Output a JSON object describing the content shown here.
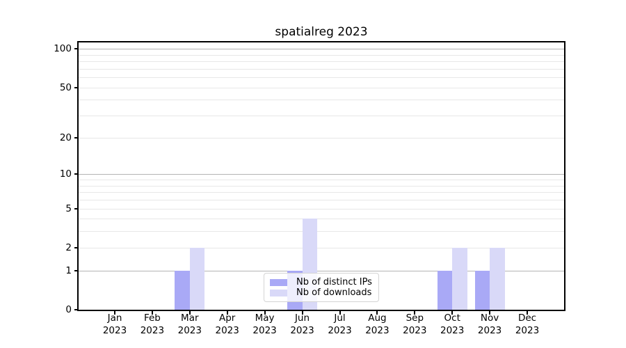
{
  "title": "spatialreg 2023",
  "colors": {
    "distinct_ips": "#a9a9f6",
    "downloads": "#d9d9f8",
    "grid_minor": "#e7e7e7",
    "grid_major": "#b3b3b3",
    "axis": "#000000",
    "legend_border": "#d4d4d4"
  },
  "chart_data": {
    "type": "bar",
    "title": "spatialreg 2023",
    "categories": [
      "Jan",
      "Feb",
      "Mar",
      "Apr",
      "May",
      "Jun",
      "Jul",
      "Aug",
      "Sep",
      "Oct",
      "Nov",
      "Dec"
    ],
    "x_year": "2023",
    "series": [
      {
        "name": "Nb of distinct IPs",
        "color_key": "distinct_ips",
        "values": [
          0,
          0,
          1,
          0,
          0,
          1,
          0,
          0,
          0,
          1,
          1,
          0
        ]
      },
      {
        "name": "Nb of downloads",
        "color_key": "downloads",
        "values": [
          0,
          0,
          2,
          0,
          0,
          4,
          0,
          0,
          0,
          2,
          2,
          0
        ]
      }
    ],
    "yscale": "log1p",
    "ylim": [
      0,
      112
    ],
    "yticks": [
      0,
      1,
      2,
      5,
      10,
      20,
      50,
      100
    ],
    "grid_major_values": [
      1,
      10,
      100
    ],
    "grid_minor_values": [
      2,
      3,
      4,
      5,
      6,
      7,
      8,
      9,
      20,
      30,
      40,
      50,
      60,
      70,
      80,
      90
    ],
    "legend_position": "lower center",
    "grid": true
  }
}
